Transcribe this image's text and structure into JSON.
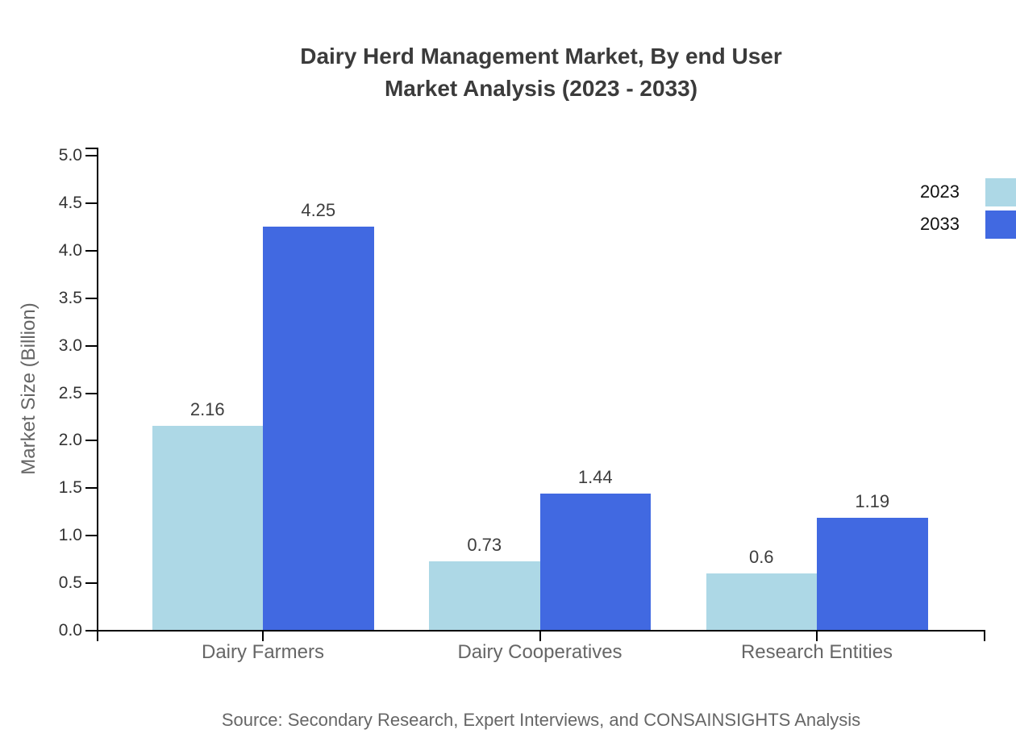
{
  "title": {
    "line1": "Dairy Herd Management Market, By end User",
    "line2": "Market Analysis (2023 - 2033)"
  },
  "source": "Source: Secondary Research, Expert Interviews, and CONSAINSIGHTS Analysis",
  "chart_data": {
    "type": "bar",
    "title": "Dairy Herd Management Market, By end User Market Analysis (2023 - 2033)",
    "categories": [
      "Dairy Farmers",
      "Dairy Cooperatives",
      "Research Entities"
    ],
    "series": [
      {
        "name": "2023",
        "color": "#ADD8E6",
        "values": [
          2.16,
          0.73,
          0.6
        ]
      },
      {
        "name": "2033",
        "color": "#4169E1",
        "values": [
          4.25,
          1.44,
          1.19
        ]
      }
    ],
    "bar_value_labels": [
      "2.16",
      "4.25",
      "0.73",
      "1.44",
      "0.6",
      "1.19"
    ],
    "xlabel": "",
    "ylabel": "Market Size (Billion)",
    "ylim": [
      0,
      5
    ],
    "ytick_step": 0.5,
    "ytick_labels": [
      "0.0",
      "0.5",
      "1.0",
      "1.5",
      "2.0",
      "2.5",
      "3.0",
      "3.5",
      "4.0",
      "4.5",
      "5.0"
    ],
    "grid": false,
    "legend_position": "right-edge",
    "axis_color": "#000000",
    "background_color": "#ffffff"
  }
}
